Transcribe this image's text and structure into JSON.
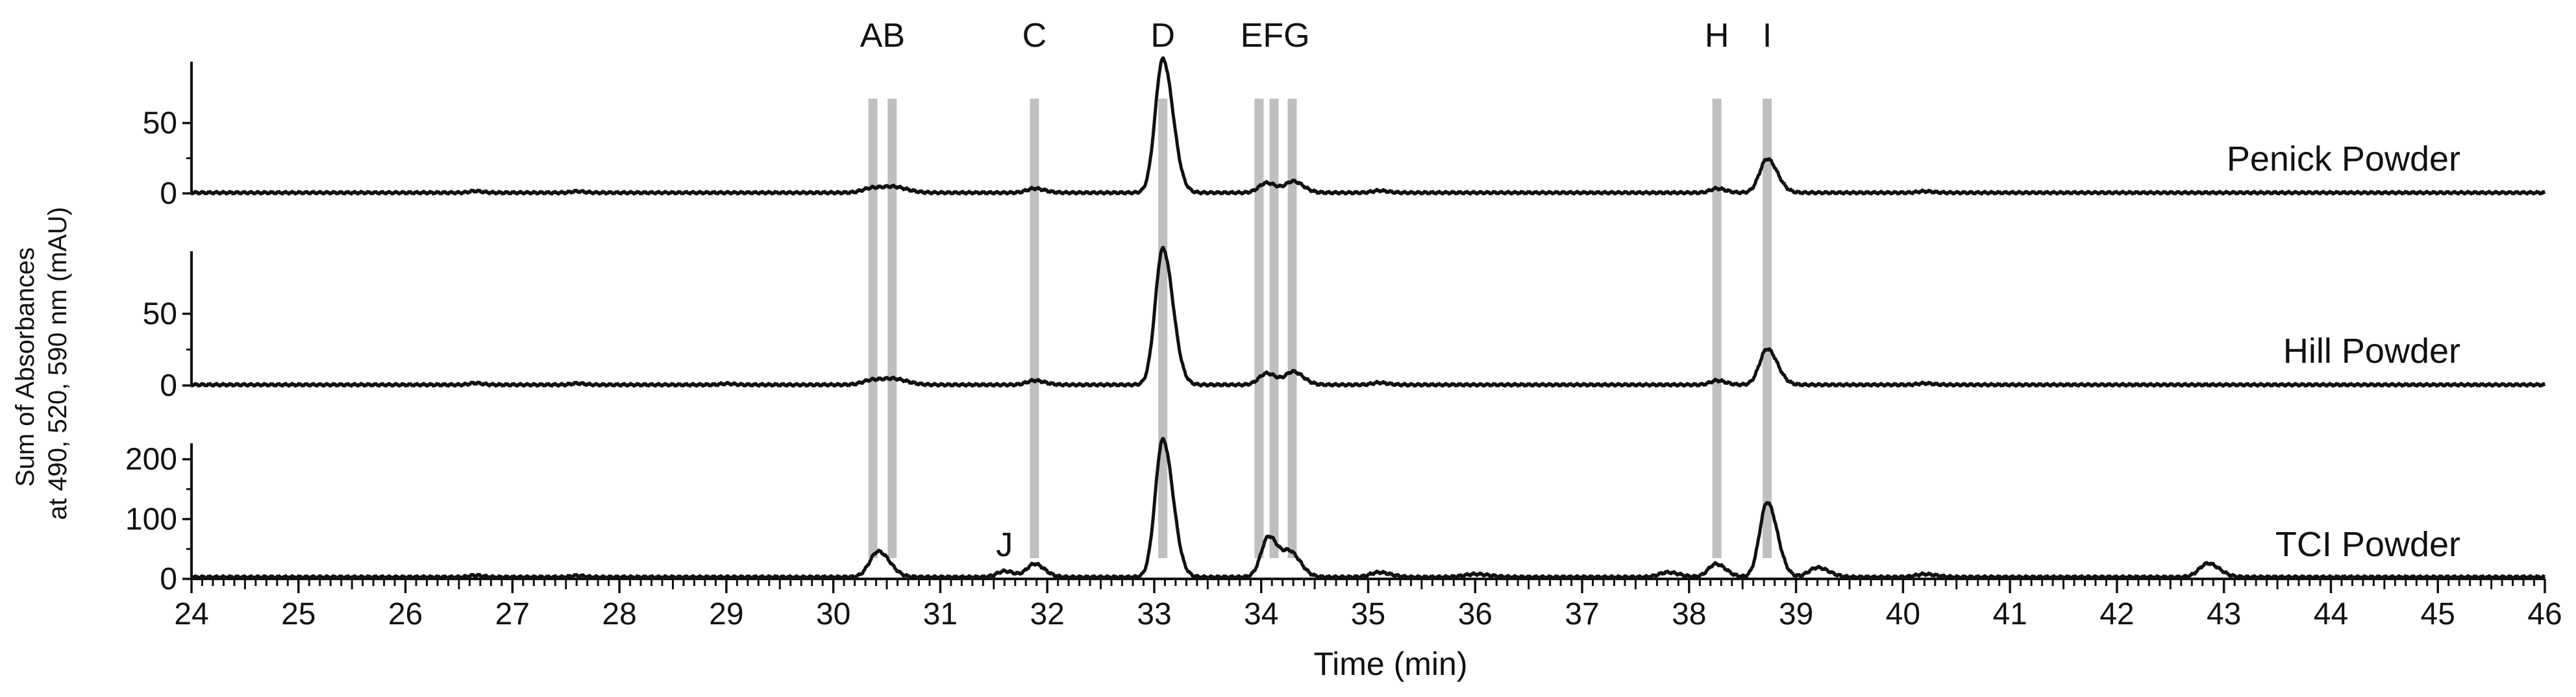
{
  "chart_data": {
    "type": "line",
    "title": "",
    "xlabel": "Time (min)",
    "ylabel_lines": [
      "Sum of Absorbances",
      "at 490, 520, 590 nm (mAU)"
    ],
    "xlim": [
      24,
      46
    ],
    "xticks": [
      24,
      25,
      26,
      27,
      28,
      29,
      30,
      31,
      32,
      33,
      34,
      35,
      36,
      37,
      38,
      39,
      40,
      41,
      42,
      43,
      44,
      45,
      46
    ],
    "grid": false,
    "legend": "none",
    "peak_markers": [
      {
        "name": "A",
        "x": 30.37
      },
      {
        "name": "B",
        "x": 30.55
      },
      {
        "name": "C",
        "x": 31.88
      },
      {
        "name": "D",
        "x": 33.08
      },
      {
        "name": "E",
        "x": 33.98
      },
      {
        "name": "F",
        "x": 34.12
      },
      {
        "name": "G",
        "x": 34.29
      },
      {
        "name": "H",
        "x": 38.26
      },
      {
        "name": "I",
        "x": 38.73
      }
    ],
    "peak_labels_top": [
      {
        "text": "AB",
        "x": 30.46
      },
      {
        "text": "C",
        "x": 31.88
      },
      {
        "text": "D",
        "x": 33.08
      },
      {
        "text": "EFG",
        "x": 34.13
      },
      {
        "text": "H",
        "x": 38.26
      },
      {
        "text": "I",
        "x": 38.73
      }
    ],
    "extra_labels": [
      {
        "text": "J",
        "x": 31.6,
        "panel": 2,
        "y": 38
      }
    ],
    "series": [
      {
        "name": "Penick Powder",
        "ylim": [
          0,
          95
        ],
        "yticks": [
          0,
          50
        ],
        "baseline": 0.5,
        "peaks": [
          [
            26.65,
            1.2,
            0.05
          ],
          [
            27.6,
            1.0,
            0.05
          ],
          [
            30.37,
            3.5,
            0.09
          ],
          [
            30.58,
            3.5,
            0.09
          ],
          [
            31.88,
            3,
            0.07
          ],
          [
            33.08,
            95,
            0.07
          ],
          [
            34.05,
            7,
            0.07
          ],
          [
            34.3,
            8,
            0.07
          ],
          [
            35.1,
            1.5,
            0.06
          ],
          [
            38.26,
            3,
            0.06
          ],
          [
            38.73,
            24,
            0.07
          ],
          [
            40.2,
            1,
            0.06
          ]
        ]
      },
      {
        "name": "Hill Powder",
        "ylim": [
          0,
          95
        ],
        "yticks": [
          0,
          50
        ],
        "baseline": 0.5,
        "peaks": [
          [
            26.65,
            1.2,
            0.05
          ],
          [
            27.6,
            1.0,
            0.05
          ],
          [
            29.0,
            0.8,
            0.05
          ],
          [
            30.37,
            3.5,
            0.09
          ],
          [
            30.58,
            3.5,
            0.09
          ],
          [
            31.88,
            3,
            0.07
          ],
          [
            33.08,
            95,
            0.07
          ],
          [
            34.05,
            8,
            0.07
          ],
          [
            34.3,
            9,
            0.07
          ],
          [
            35.1,
            1.5,
            0.06
          ],
          [
            38.26,
            3,
            0.06
          ],
          [
            38.73,
            25,
            0.07
          ],
          [
            40.2,
            1,
            0.06
          ]
        ]
      },
      {
        "name": "TCI Powder",
        "ylim": [
          0,
          230
        ],
        "yticks": [
          0,
          100,
          200
        ],
        "baseline": 3,
        "peaks": [
          [
            26.65,
            3,
            0.05
          ],
          [
            27.6,
            2.5,
            0.05
          ],
          [
            30.42,
            43,
            0.08
          ],
          [
            31.6,
            10,
            0.07
          ],
          [
            31.88,
            22,
            0.07
          ],
          [
            33.08,
            230,
            0.07
          ],
          [
            34.07,
            68,
            0.07
          ],
          [
            34.28,
            38,
            0.07
          ],
          [
            35.1,
            8,
            0.08
          ],
          [
            36.0,
            5,
            0.1
          ],
          [
            37.8,
            8,
            0.08
          ],
          [
            38.25,
            22,
            0.07
          ],
          [
            38.73,
            125,
            0.07
          ],
          [
            39.2,
            16,
            0.08
          ],
          [
            40.2,
            5,
            0.08
          ],
          [
            42.85,
            23,
            0.08
          ]
        ]
      }
    ]
  }
}
